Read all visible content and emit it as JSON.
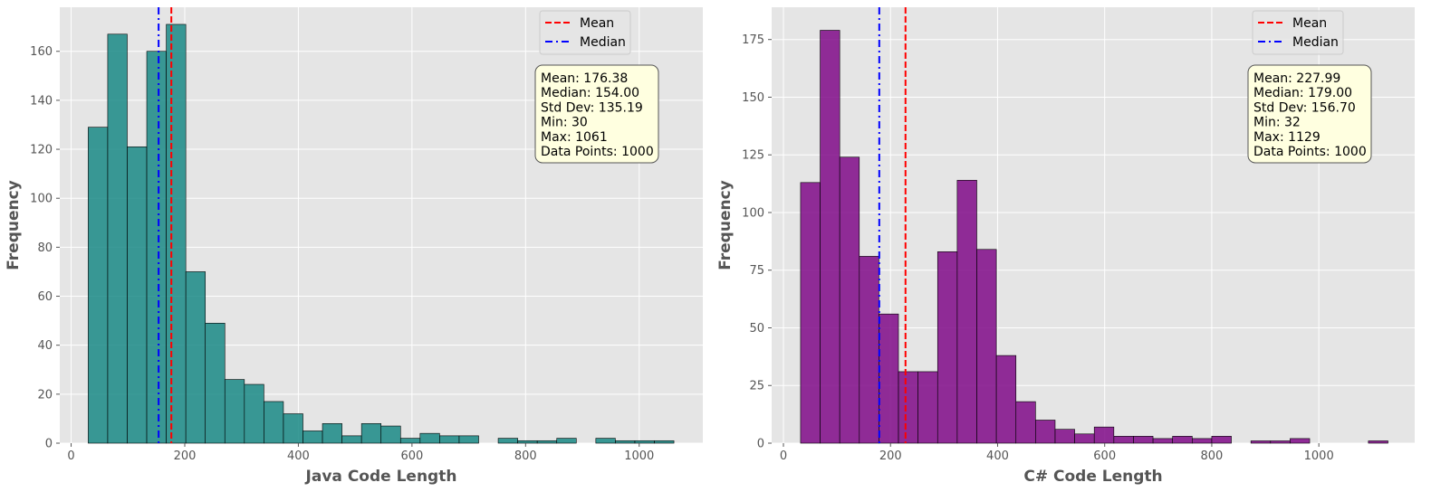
{
  "chart_data": [
    {
      "type": "histogram",
      "xlabel": "Java Code Length",
      "ylabel": "Frequency",
      "xlim": [
        -20,
        1112
      ],
      "ylim": [
        0,
        178
      ],
      "xticks": [
        0,
        200,
        400,
        600,
        800,
        1000
      ],
      "yticks": [
        0,
        20,
        40,
        60,
        80,
        100,
        120,
        140,
        160
      ],
      "bin_start": 30,
      "bin_width": 34.37,
      "counts": [
        129,
        167,
        121,
        160,
        171,
        70,
        49,
        26,
        24,
        17,
        12,
        5,
        8,
        3,
        8,
        7,
        2,
        4,
        3,
        3,
        0,
        2,
        1,
        1,
        2,
        0,
        2,
        1,
        1,
        1
      ],
      "bar_color": "#1a8a86",
      "mean": 176.38,
      "median": 154.0,
      "legend": {
        "mean": "Mean",
        "median": "Median"
      },
      "stats": [
        "Mean: 176.38",
        "Median: 154.00",
        "Std Dev: 135.19",
        "Min: 30",
        "Max: 1061",
        "Data Points: 1000"
      ]
    },
    {
      "type": "histogram",
      "xlabel": "C# Code Length",
      "ylabel": "Frequency",
      "xlim": [
        -22,
        1179
      ],
      "ylim": [
        0,
        189
      ],
      "xticks": [
        0,
        200,
        400,
        600,
        800,
        1000
      ],
      "yticks": [
        0,
        25,
        50,
        75,
        100,
        125,
        150,
        175
      ],
      "bin_start": 32,
      "bin_width": 36.57,
      "counts": [
        113,
        179,
        124,
        81,
        56,
        31,
        31,
        83,
        114,
        84,
        38,
        18,
        10,
        6,
        4,
        7,
        3,
        3,
        2,
        3,
        2,
        3,
        0,
        1,
        1,
        2,
        0,
        0,
        0,
        1
      ],
      "bar_color": "#800a88",
      "mean": 227.99,
      "median": 179.0,
      "legend": {
        "mean": "Mean",
        "median": "Median"
      },
      "stats": [
        "Mean: 227.99",
        "Median: 179.00",
        "Std Dev: 156.70",
        "Min: 32",
        "Max: 1129",
        "Data Points: 1000"
      ]
    }
  ],
  "colors": {
    "plot_bg": "#e5e5e5",
    "grid": "#ffffff",
    "mean_line": "#ff0000",
    "median_line": "#0000ff",
    "stats_box": "#ffffe0"
  }
}
